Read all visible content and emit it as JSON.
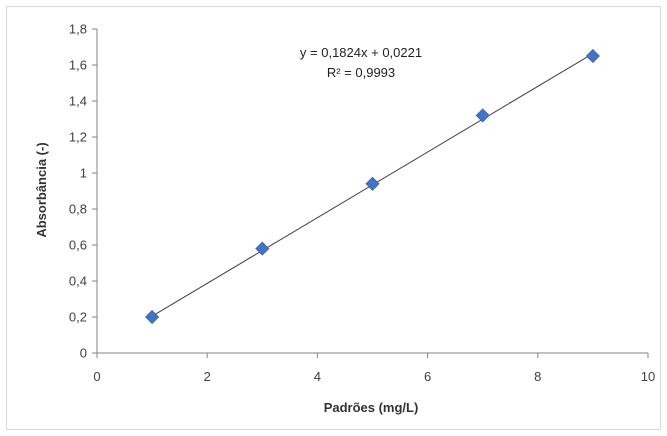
{
  "chart_data": {
    "type": "scatter",
    "xlabel": "Padrões (mg/L)",
    "ylabel": "Absorbância (-)",
    "xlim": [
      0,
      10
    ],
    "ylim": [
      0,
      1.8
    ],
    "x_ticks": [
      "0",
      "2",
      "4",
      "6",
      "8",
      "10"
    ],
    "y_ticks": [
      "0",
      "0,2",
      "0,4",
      "0,6",
      "0,8",
      "1",
      "1,2",
      "1,4",
      "1,6",
      "1,8"
    ],
    "series": [
      {
        "x": [
          1,
          3,
          5,
          7,
          9
        ],
        "y": [
          0.2,
          0.58,
          0.94,
          1.32,
          1.65
        ],
        "marker": "diamond",
        "color": "#4472c4"
      }
    ],
    "trendline": {
      "type": "linear",
      "slope": 0.1824,
      "intercept": 0.0221,
      "color": "#404040"
    },
    "annotations": {
      "equation": "y = 0,1824x + 0,0221",
      "r2": "R² = 0,9993"
    },
    "grid": false,
    "legend": "none"
  }
}
